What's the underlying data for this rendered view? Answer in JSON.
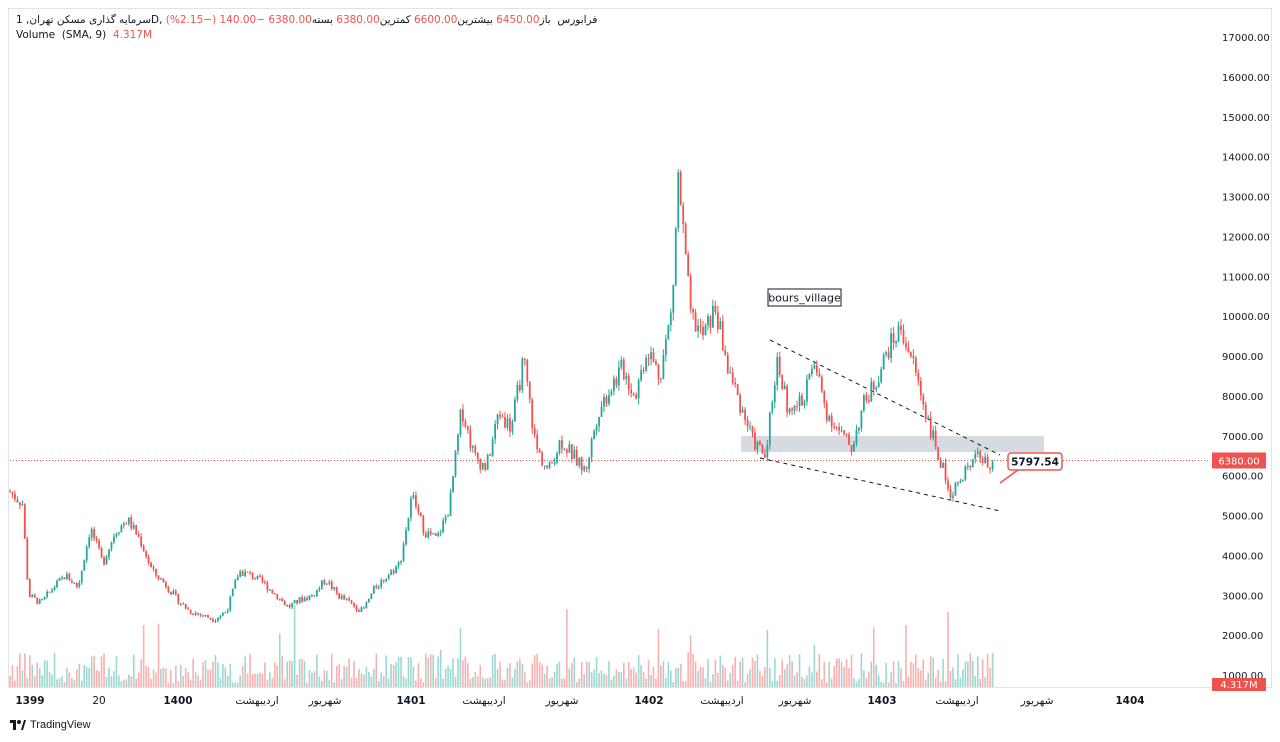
{
  "legend": {
    "symbol": "سرمایه گذاری مسکن تهران, 1D, فرابورس",
    "open_label": "باز",
    "open": "6450.00",
    "high_label": "بیشترین",
    "high": "6600.00",
    "low_label": "کمترین",
    "low": "6380.00",
    "close_label": "بسته",
    "close": "6380.00",
    "change": "−140.00 (−2.15%)",
    "volume_label": "Volume",
    "volume_params": "(SMA, 9)",
    "volume_value": "4.317M"
  },
  "annotation": {
    "watermark_text": "bours_village",
    "callout_value": "5797.54"
  },
  "footer": {
    "brand": "TradingView"
  },
  "colors": {
    "up": "#26a69a",
    "down": "#ef5350",
    "zone": "#d1d4dc",
    "price_line": "#ef5350"
  },
  "chart_data": {
    "type": "candlestick",
    "y_axis_ticks": [
      "17000.00",
      "16000.00",
      "15000.00",
      "14000.00",
      "13000.00",
      "12000.00",
      "11000.00",
      "10000.00",
      "9000.00",
      "8000.00",
      "7000.00",
      "6000.00",
      "5000.00",
      "4000.00",
      "3000.00",
      "2000.00",
      "1000.00"
    ],
    "ylim": [
      1000,
      17000
    ],
    "x_axis_labels": [
      "1399",
      "20",
      "1400",
      "اردیبهشت",
      "شهریور",
      "1401",
      "اردیبهشت",
      "شهریور",
      "1402",
      "اردیبهشت",
      "شهریور",
      "1403",
      "اردیبهشت",
      "شهریور",
      "1404"
    ],
    "last_price": "6380.00",
    "volume_label": "4.317M",
    "price_path": [
      [
        0,
        5600
      ],
      [
        2,
        5300
      ],
      [
        3,
        3000
      ],
      [
        5,
        2800
      ],
      [
        7,
        3200
      ],
      [
        9,
        3500
      ],
      [
        11,
        3200
      ],
      [
        13,
        4700
      ],
      [
        15,
        3800
      ],
      [
        17,
        4600
      ],
      [
        19,
        4900
      ],
      [
        21,
        4400
      ],
      [
        23,
        3600
      ],
      [
        25,
        3300
      ],
      [
        27,
        2900
      ],
      [
        29,
        2600
      ],
      [
        31,
        2500
      ],
      [
        33,
        2400
      ],
      [
        35,
        2600
      ],
      [
        37,
        3600
      ],
      [
        39,
        3500
      ],
      [
        41,
        3300
      ],
      [
        43,
        3000
      ],
      [
        45,
        2700
      ],
      [
        47,
        2900
      ],
      [
        49,
        3000
      ],
      [
        51,
        3400
      ],
      [
        53,
        3000
      ],
      [
        55,
        2800
      ],
      [
        57,
        2600
      ],
      [
        59,
        3200
      ],
      [
        61,
        3500
      ],
      [
        63,
        3800
      ],
      [
        65,
        5500
      ],
      [
        67,
        4600
      ],
      [
        69,
        4400
      ],
      [
        71,
        5200
      ],
      [
        73,
        7700
      ],
      [
        75,
        6500
      ],
      [
        77,
        6200
      ],
      [
        79,
        7600
      ],
      [
        81,
        7200
      ],
      [
        83,
        8900
      ],
      [
        85,
        6700
      ],
      [
        87,
        6100
      ],
      [
        89,
        6900
      ],
      [
        91,
        6500
      ],
      [
        93,
        6100
      ],
      [
        95,
        7600
      ],
      [
        97,
        8200
      ],
      [
        99,
        8700
      ],
      [
        101,
        8000
      ],
      [
        103,
        9200
      ],
      [
        105,
        8500
      ],
      [
        107,
        10200
      ],
      [
        108,
        13500
      ],
      [
        110,
        10000
      ],
      [
        112,
        9500
      ],
      [
        114,
        10200
      ],
      [
        116,
        8700
      ],
      [
        118,
        7800
      ],
      [
        120,
        6900
      ],
      [
        122,
        6500
      ],
      [
        124,
        8900
      ],
      [
        126,
        7500
      ],
      [
        128,
        7900
      ],
      [
        130,
        8800
      ],
      [
        132,
        7600
      ],
      [
        134,
        7100
      ],
      [
        136,
        6700
      ],
      [
        138,
        7800
      ],
      [
        140,
        8400
      ],
      [
        142,
        9200
      ],
      [
        144,
        9700
      ],
      [
        146,
        8800
      ],
      [
        148,
        7600
      ],
      [
        150,
        6500
      ],
      [
        152,
        5600
      ],
      [
        154,
        5900
      ],
      [
        156,
        6700
      ],
      [
        158,
        6200
      ],
      [
        159,
        6380
      ]
    ]
  }
}
